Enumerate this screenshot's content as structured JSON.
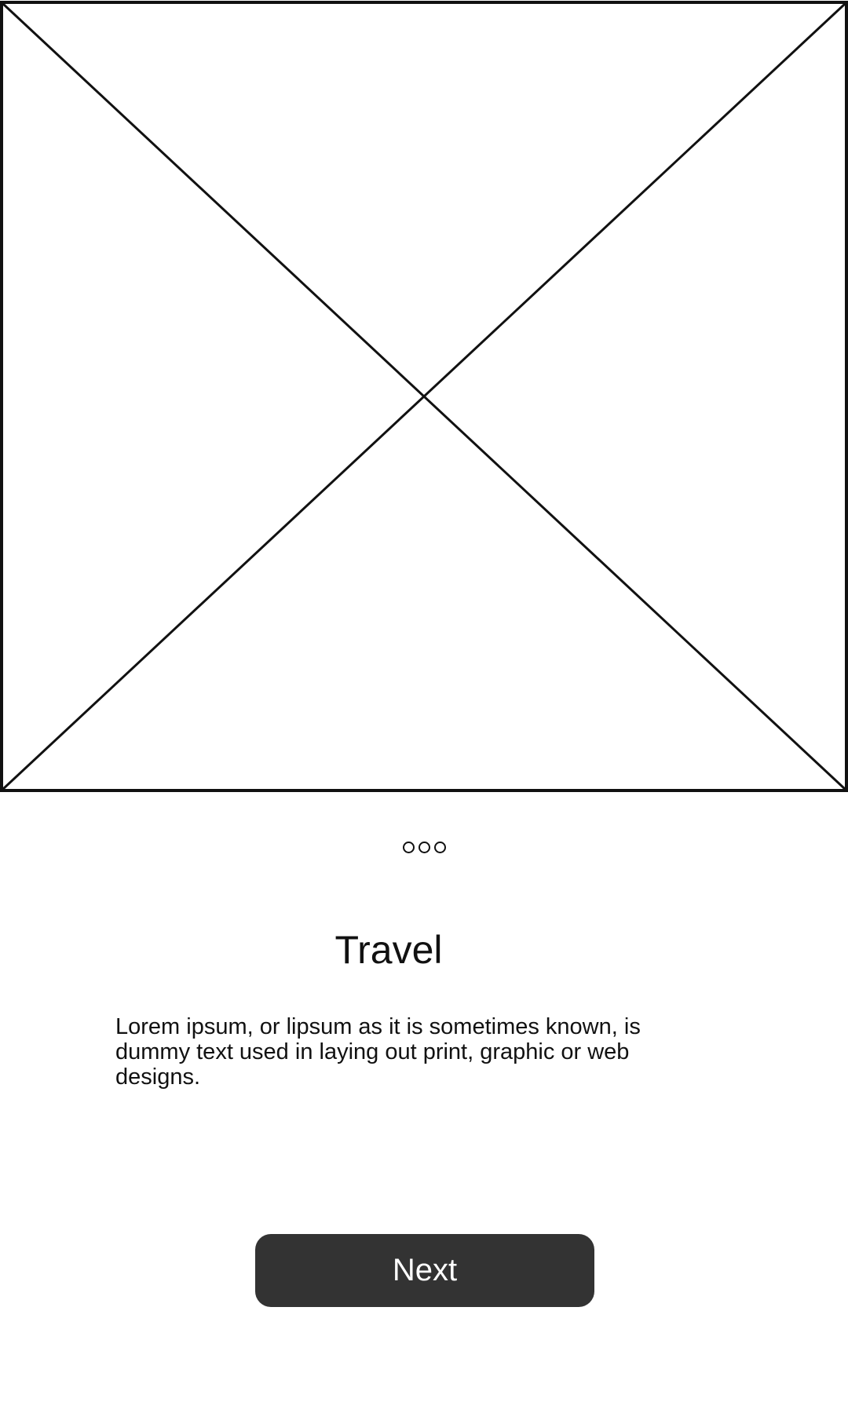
{
  "onboarding": {
    "image": {
      "icon": "image-placeholder-icon"
    },
    "pager": {
      "count": 3
    },
    "title": "Travel",
    "description": "Lorem ipsum, or lipsum as it is sometimes known, is dummy text used in laying out print, graphic or web designs.",
    "next_label": "Next"
  },
  "colors": {
    "background": "#ffffff",
    "ink": "#111111",
    "button_background": "#333333",
    "button_text": "#ffffff"
  }
}
